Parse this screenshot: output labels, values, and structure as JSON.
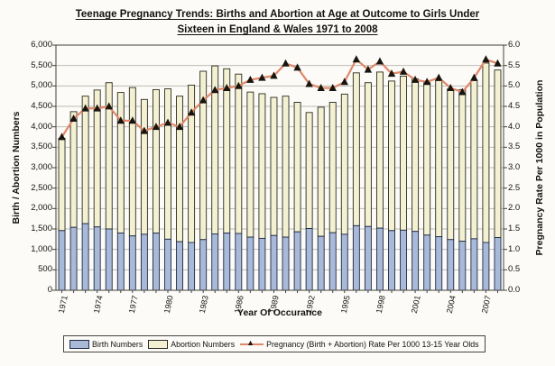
{
  "page": {
    "background": "#fcfbf7"
  },
  "chart_data": {
    "type": "bar",
    "subtype": "stacked-bars-with-line-overlay",
    "title": "Teenage Pregnancy Trends: Births and Abortion at Age at Outcome to Girls Under Sixteen in England & Wales 1971 to 2008",
    "title_line1": "Teenage Pregnancy Trends: Births and Abortion at Age at Outcome to Girls Under",
    "title_line2": "Sixteen in England & Wales 1971 to 2008",
    "xlabel": "Year Of Occurance",
    "ylabel_left": "Birth / Abortion Numbers",
    "ylabel_right": "Pregnancy Rate Per 1000 in Population",
    "ylim_left": [
      0,
      6000
    ],
    "ytick_step_left": 500,
    "ylim_right": [
      0,
      6.0
    ],
    "ytick_step_right": 0.5,
    "ytick_labels_left": [
      "6,000",
      "5,500",
      "5,000",
      "4,500",
      "4,000",
      "3,500",
      "3,000",
      "2,500",
      "2,000",
      "1,500",
      "1,000",
      "500",
      "0"
    ],
    "ytick_values_left": [
      6000,
      5500,
      5000,
      4500,
      4000,
      3500,
      3000,
      2500,
      2000,
      1500,
      1000,
      500,
      0
    ],
    "ytick_labels_right": [
      "6.0",
      "5.5",
      "5.0",
      "4.5",
      "4.0",
      "3.5",
      "3.0",
      "2.5",
      "2.0",
      "1.5",
      "1.0",
      "0.5",
      "0.0"
    ],
    "ytick_values_right": [
      6.0,
      5.5,
      5.0,
      4.5,
      4.0,
      3.5,
      3.0,
      2.5,
      2.0,
      1.5,
      1.0,
      0.5,
      0.0
    ],
    "categories": [
      "1971",
      "1972",
      "1973",
      "1974",
      "1975",
      "1976",
      "1977",
      "1978",
      "1979",
      "1980",
      "1981",
      "1982",
      "1983",
      "1984",
      "1985",
      "1986",
      "1987",
      "1988",
      "1989",
      "1990",
      "1991",
      "1992",
      "1993",
      "1994",
      "1995",
      "1996",
      "1997",
      "1998",
      "1999",
      "2000",
      "2001",
      "2002",
      "2003",
      "2004",
      "2005",
      "2006",
      "2007",
      "2008"
    ],
    "xtick_labels": [
      "1971",
      "1974",
      "1977",
      "1980",
      "1983",
      "1986",
      "1989",
      "1992",
      "1995",
      "1998",
      "2001",
      "2004",
      "2007"
    ],
    "xtick_interval": 3,
    "grid": true,
    "legend_position": "bottom",
    "series": [
      {
        "name": "Birth Numbers",
        "type": "bar",
        "stack": true,
        "axis": "left",
        "color": "#a9b9d8",
        "border": "#1f2a44",
        "values": [
          1460,
          1540,
          1630,
          1550,
          1500,
          1400,
          1330,
          1370,
          1400,
          1250,
          1190,
          1170,
          1240,
          1380,
          1400,
          1390,
          1300,
          1270,
          1340,
          1300,
          1430,
          1510,
          1320,
          1410,
          1370,
          1580,
          1560,
          1520,
          1460,
          1470,
          1440,
          1350,
          1310,
          1240,
          1200,
          1260,
          1170,
          1290
        ]
      },
      {
        "name": "Abortion Numbers",
        "type": "bar",
        "stack": true,
        "axis": "left",
        "color": "#f4f1d3",
        "border": "#2a2a1e",
        "values": [
          2260,
          2830,
          3120,
          3350,
          3580,
          3440,
          3630,
          3300,
          3510,
          3680,
          3560,
          3850,
          4120,
          4110,
          4020,
          3900,
          3550,
          3540,
          3380,
          3450,
          3170,
          2840,
          3160,
          3190,
          3430,
          3740,
          3520,
          3820,
          3660,
          3770,
          3730,
          3730,
          3820,
          3690,
          3710,
          3870,
          4390,
          4100
        ]
      },
      {
        "name": "Pregnancy (Birth + Abortion)  Rate Per 1000 13-15 Year Olds",
        "type": "line",
        "axis": "right",
        "color": "#e0886a",
        "marker": "triangle",
        "marker_color": "#18140e",
        "values": [
          3.75,
          4.2,
          4.45,
          4.45,
          4.5,
          4.15,
          4.15,
          3.9,
          4.0,
          4.1,
          4.0,
          4.35,
          4.65,
          4.9,
          4.95,
          5.0,
          5.15,
          5.2,
          5.25,
          5.55,
          5.45,
          5.05,
          4.95,
          4.95,
          5.1,
          5.65,
          5.4,
          5.6,
          5.3,
          5.35,
          5.15,
          5.1,
          5.2,
          4.95,
          4.85,
          5.2,
          5.65,
          5.55
        ]
      }
    ]
  }
}
